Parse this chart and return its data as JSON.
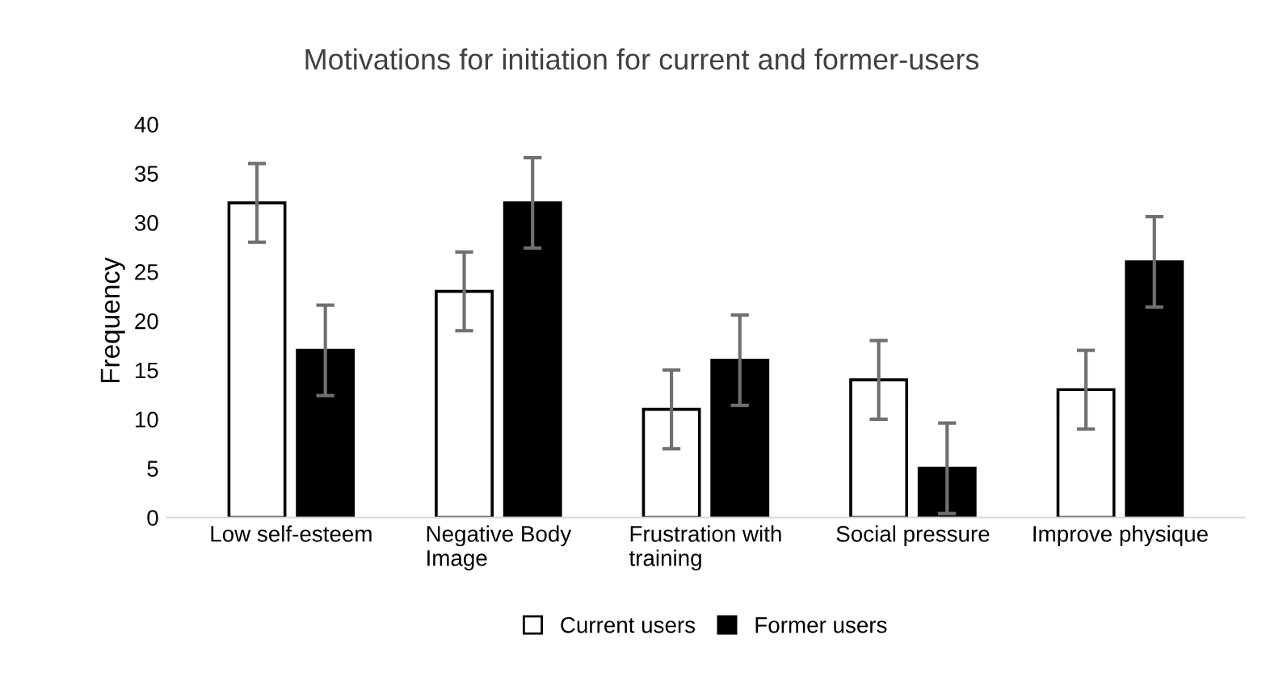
{
  "chart_data": {
    "type": "bar",
    "title": "Motivations for initiation for current and former-users",
    "ylabel": "Frequency",
    "categories": [
      "Low self-esteem",
      "Negative Body Image",
      "Frustration with training",
      "Social pressure",
      "Improve physique"
    ],
    "series": [
      {
        "name": "Current users",
        "color": "#ffffff",
        "values": [
          32,
          23,
          11,
          14,
          13
        ],
        "errors": [
          4,
          4,
          4,
          4,
          4
        ]
      },
      {
        "name": "Former users",
        "color": "#000000",
        "values": [
          17,
          32,
          16,
          5,
          26
        ],
        "errors": [
          4.6,
          4.6,
          4.6,
          4.6,
          4.6
        ]
      }
    ],
    "ylim": [
      0,
      40
    ],
    "yticks": [
      0,
      5,
      10,
      15,
      20,
      25,
      30,
      35,
      40
    ],
    "grid": false,
    "legend": "bottom"
  }
}
